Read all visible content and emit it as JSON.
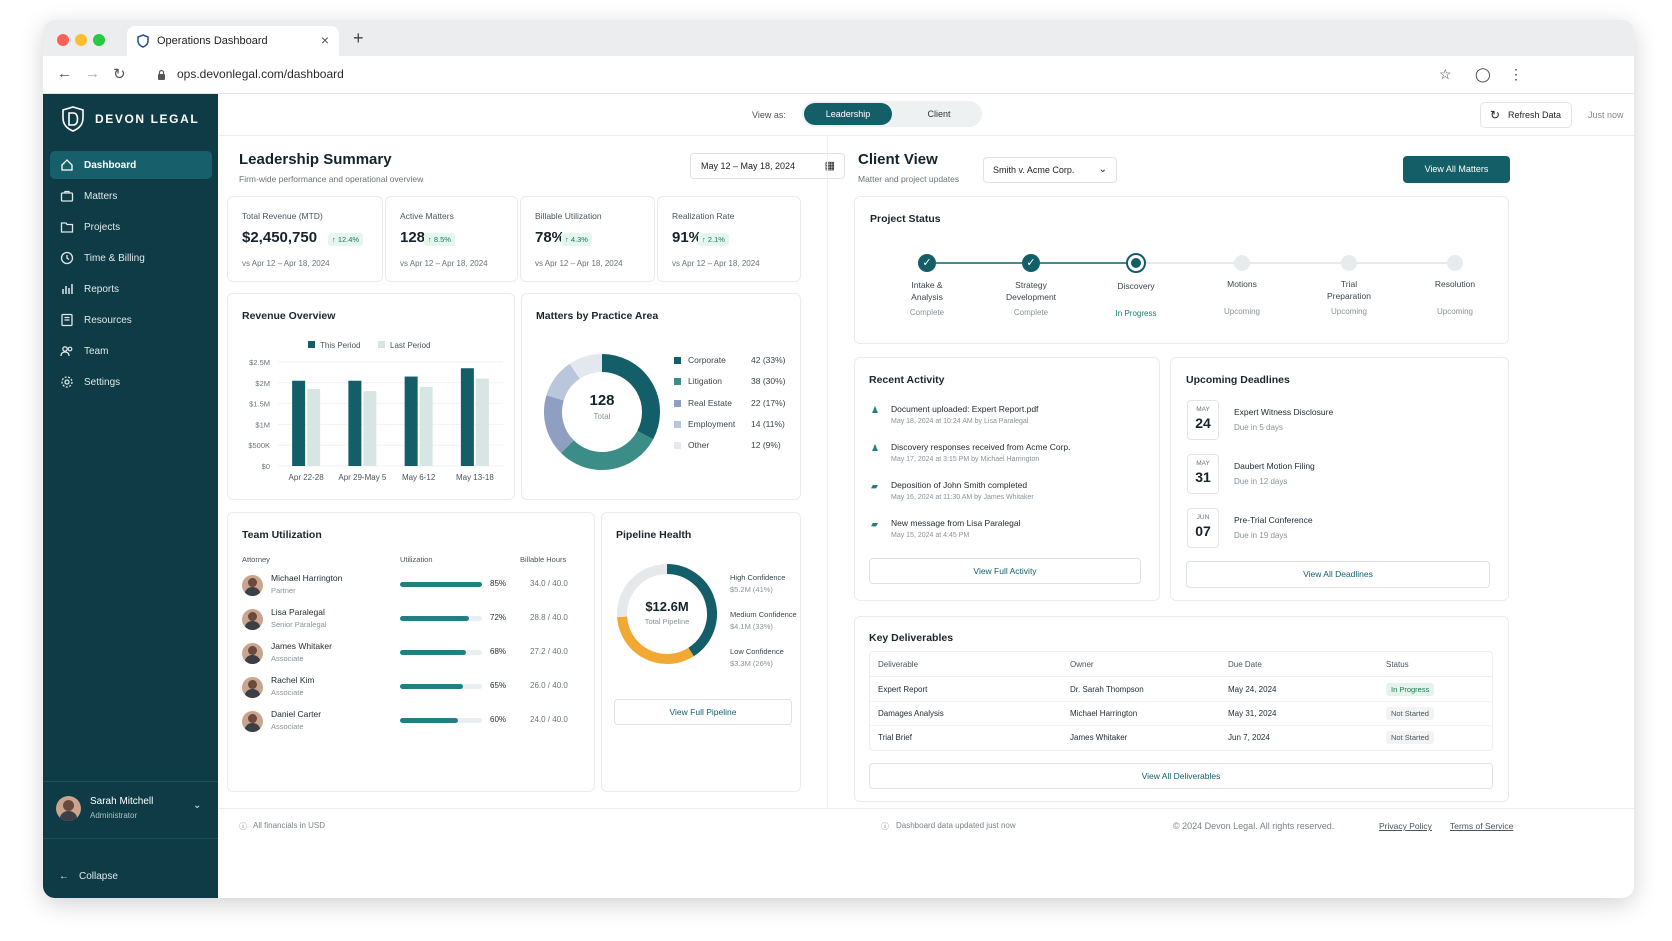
{
  "browser": {
    "tab_title": "Operations Dashboard",
    "url": "ops.devonlegal.com/dashboard"
  },
  "sidebar": {
    "brand": "DEVON LEGAL",
    "items": [
      {
        "label": "Dashboard",
        "icon": "home-icon"
      },
      {
        "label": "Matters",
        "icon": "briefcase-icon"
      },
      {
        "label": "Projects",
        "icon": "folder-icon"
      },
      {
        "label": "Time & Billing",
        "icon": "clock-icon"
      },
      {
        "label": "Reports",
        "icon": "bar-chart-icon"
      },
      {
        "label": "Resources",
        "icon": "book-icon"
      },
      {
        "label": "Team",
        "icon": "users-icon"
      },
      {
        "label": "Settings",
        "icon": "gear-icon"
      }
    ],
    "user": {
      "name": "Sarah Mitchell",
      "role": "Administrator"
    },
    "collapse_label": "Collapse"
  },
  "topbar": {
    "view_as_label": "View as:",
    "toggle": [
      "Leadership",
      "Client"
    ],
    "refresh_label": "Refresh Data",
    "updated": "Just now"
  },
  "leadership": {
    "title": "Leadership Summary",
    "subtitle": "Firm-wide performance and operational overview",
    "date_range": "May 12 – May 18, 2024",
    "kpis": [
      {
        "label": "Total Revenue (MTD)",
        "value": "$2,450,750",
        "delta": "↑ 12.4%",
        "sub": "vs Apr 12 – Apr 18, 2024"
      },
      {
        "label": "Active Matters",
        "value": "128",
        "delta": "↑ 8.5%",
        "sub": "vs Apr 12 – Apr 18, 2024"
      },
      {
        "label": "Billable Utilization",
        "value": "78%",
        "delta": "↑ 4.3%",
        "sub": "vs Apr 12 – Apr 18, 2024"
      },
      {
        "label": "Realization Rate",
        "value": "91%",
        "delta": "↑ 2.1%",
        "sub": "vs Apr 12 – Apr 18, 2024"
      }
    ],
    "revenue": {
      "title": "Revenue Overview",
      "legend": [
        "This Period",
        "Last Period"
      ]
    },
    "practice": {
      "title": "Matters by Practice Area",
      "center_value": "128",
      "center_label": "Total",
      "items": [
        {
          "name": "Corporate",
          "value": "42 (33%)",
          "color": "#135e68"
        },
        {
          "name": "Litigation",
          "value": "38 (30%)",
          "color": "#3c8c88"
        },
        {
          "name": "Real Estate",
          "value": "22 (17%)",
          "color": "#8e9fc2"
        },
        {
          "name": "Employment",
          "value": "14 (11%)",
          "color": "#b9c6dc"
        },
        {
          "name": "Other",
          "value": "12 (9%)",
          "color": "#e3e8ee"
        }
      ]
    },
    "team": {
      "title": "Team Utilization",
      "headers": [
        "Attorney",
        "Utilization",
        "Billable Hours"
      ],
      "rows": [
        {
          "name": "Michael Harrington",
          "role": "Partner",
          "util": 85,
          "util_label": "85%",
          "hours": "34.0 / 40.0"
        },
        {
          "name": "Lisa Paralegal",
          "role": "Senior Paralegal",
          "util": 72,
          "util_label": "72%",
          "hours": "28.8 / 40.0"
        },
        {
          "name": "James Whitaker",
          "role": "Associate",
          "util": 68,
          "util_label": "68%",
          "hours": "27.2 / 40.0"
        },
        {
          "name": "Rachel Kim",
          "role": "Associate",
          "util": 65,
          "util_label": "65%",
          "hours": "26.0 / 40.0"
        },
        {
          "name": "Daniel Carter",
          "role": "Associate",
          "util": 60,
          "util_label": "60%",
          "hours": "24.0 / 40.0"
        }
      ]
    },
    "pipeline": {
      "title": "Pipeline Health",
      "center_value": "$12.6M",
      "center_label": "Total Pipeline",
      "segments": [
        {
          "name": "High Confidence",
          "value": "$5.2M (41%)",
          "pct": 41,
          "color": "#135e68"
        },
        {
          "name": "Medium Confidence",
          "value": "$4.1M (33%)",
          "pct": 33,
          "color": "#f2a934"
        },
        {
          "name": "Low Confidence",
          "value": "$3.3M (26%)",
          "pct": 26,
          "color": "#e5e9ec"
        }
      ],
      "button": "View Full Pipeline"
    }
  },
  "client": {
    "title": "Client View",
    "subtitle": "Matter and project updates",
    "matter_select": "Smith v. Acme Corp.",
    "view_all_matters": "View All Matters",
    "status": {
      "title": "Project Status",
      "steps": [
        {
          "line1": "Intake &",
          "line2": "Analysis",
          "state": "Complete",
          "kind": "done"
        },
        {
          "line1": "Strategy",
          "line2": "Development",
          "state": "Complete",
          "kind": "done"
        },
        {
          "line1": "Discovery",
          "line2": "",
          "state": "In Progress",
          "kind": "current"
        },
        {
          "line1": "Motions",
          "line2": "",
          "state": "Upcoming",
          "kind": "upcoming"
        },
        {
          "line1": "Trial",
          "line2": "Preparation",
          "state": "Upcoming",
          "kind": "upcoming"
        },
        {
          "line1": "Resolution",
          "line2": "",
          "state": "Upcoming",
          "kind": "upcoming"
        }
      ]
    },
    "activity": {
      "title": "Recent Activity",
      "items": [
        {
          "text": "Document uploaded: Expert Report.pdf",
          "meta": "May 18, 2024 at 10:24 AM by Lisa Paralegal",
          "icon": "user-icon"
        },
        {
          "text": "Discovery responses received from Acme Corp.",
          "meta": "May 17, 2024 at 3:15 PM by Michael Harrington",
          "icon": "user-icon"
        },
        {
          "text": "Deposition of John Smith completed",
          "meta": "May 16, 2024 at 11:30 AM by James Whitaker",
          "icon": "chat-icon"
        },
        {
          "text": "New message from Lisa Paralegal",
          "meta": "May 15, 2024 at 4:45 PM",
          "icon": "chat-icon"
        }
      ],
      "button": "View Full Activity"
    },
    "deadlines": {
      "title": "Upcoming Deadlines",
      "items": [
        {
          "month": "MAY",
          "day": "24",
          "title": "Expert Witness Disclosure",
          "due": "Due in 5 days"
        },
        {
          "month": "MAY",
          "day": "31",
          "title": "Daubert Motion Filing",
          "due": "Due in 12 days"
        },
        {
          "month": "JUN",
          "day": "07",
          "title": "Pre-Trial Conference",
          "due": "Due in 19 days"
        }
      ],
      "button": "View All Deadlines"
    },
    "deliverables": {
      "title": "Key Deliverables",
      "headers": [
        "Deliverable",
        "Owner",
        "Due Date",
        "Status"
      ],
      "rows": [
        {
          "name": "Expert Report",
          "owner": "Dr. Sarah Thompson",
          "due": "May 24, 2024",
          "status": "In Progress",
          "kind": "progress"
        },
        {
          "name": "Damages Analysis",
          "owner": "Michael Harrington",
          "due": "May 31, 2024",
          "status": "Not Started",
          "kind": "none"
        },
        {
          "name": "Trial Brief",
          "owner": "James Whitaker",
          "due": "Jun 7, 2024",
          "status": "Not Started",
          "kind": "none"
        }
      ],
      "button": "View All Deliverables"
    }
  },
  "footer": {
    "left": "All financials in USD",
    "center": "Dashboard data updated just now",
    "copyright": "© 2024 Devon Legal. All rights reserved.",
    "privacy": "Privacy Policy",
    "terms": "Terms of Service"
  },
  "chart_data": {
    "type": "bar",
    "title": "Revenue Overview",
    "categories": [
      "Apr 22-28",
      "Apr 29-May 5",
      "May 6-12",
      "May 13-18"
    ],
    "series": [
      {
        "name": "This Period",
        "values": [
          2.05,
          2.05,
          2.15,
          2.35
        ]
      },
      {
        "name": "Last Period",
        "values": [
          1.85,
          1.8,
          1.9,
          2.1
        ]
      }
    ],
    "ylim": [
      0,
      2.5
    ],
    "yticks": [
      "$0",
      "$500K",
      "$1M",
      "$1.5M",
      "$2M",
      "$2.5M"
    ],
    "legend": "top",
    "colors": [
      "#135e68",
      "#d7e6e5"
    ]
  }
}
